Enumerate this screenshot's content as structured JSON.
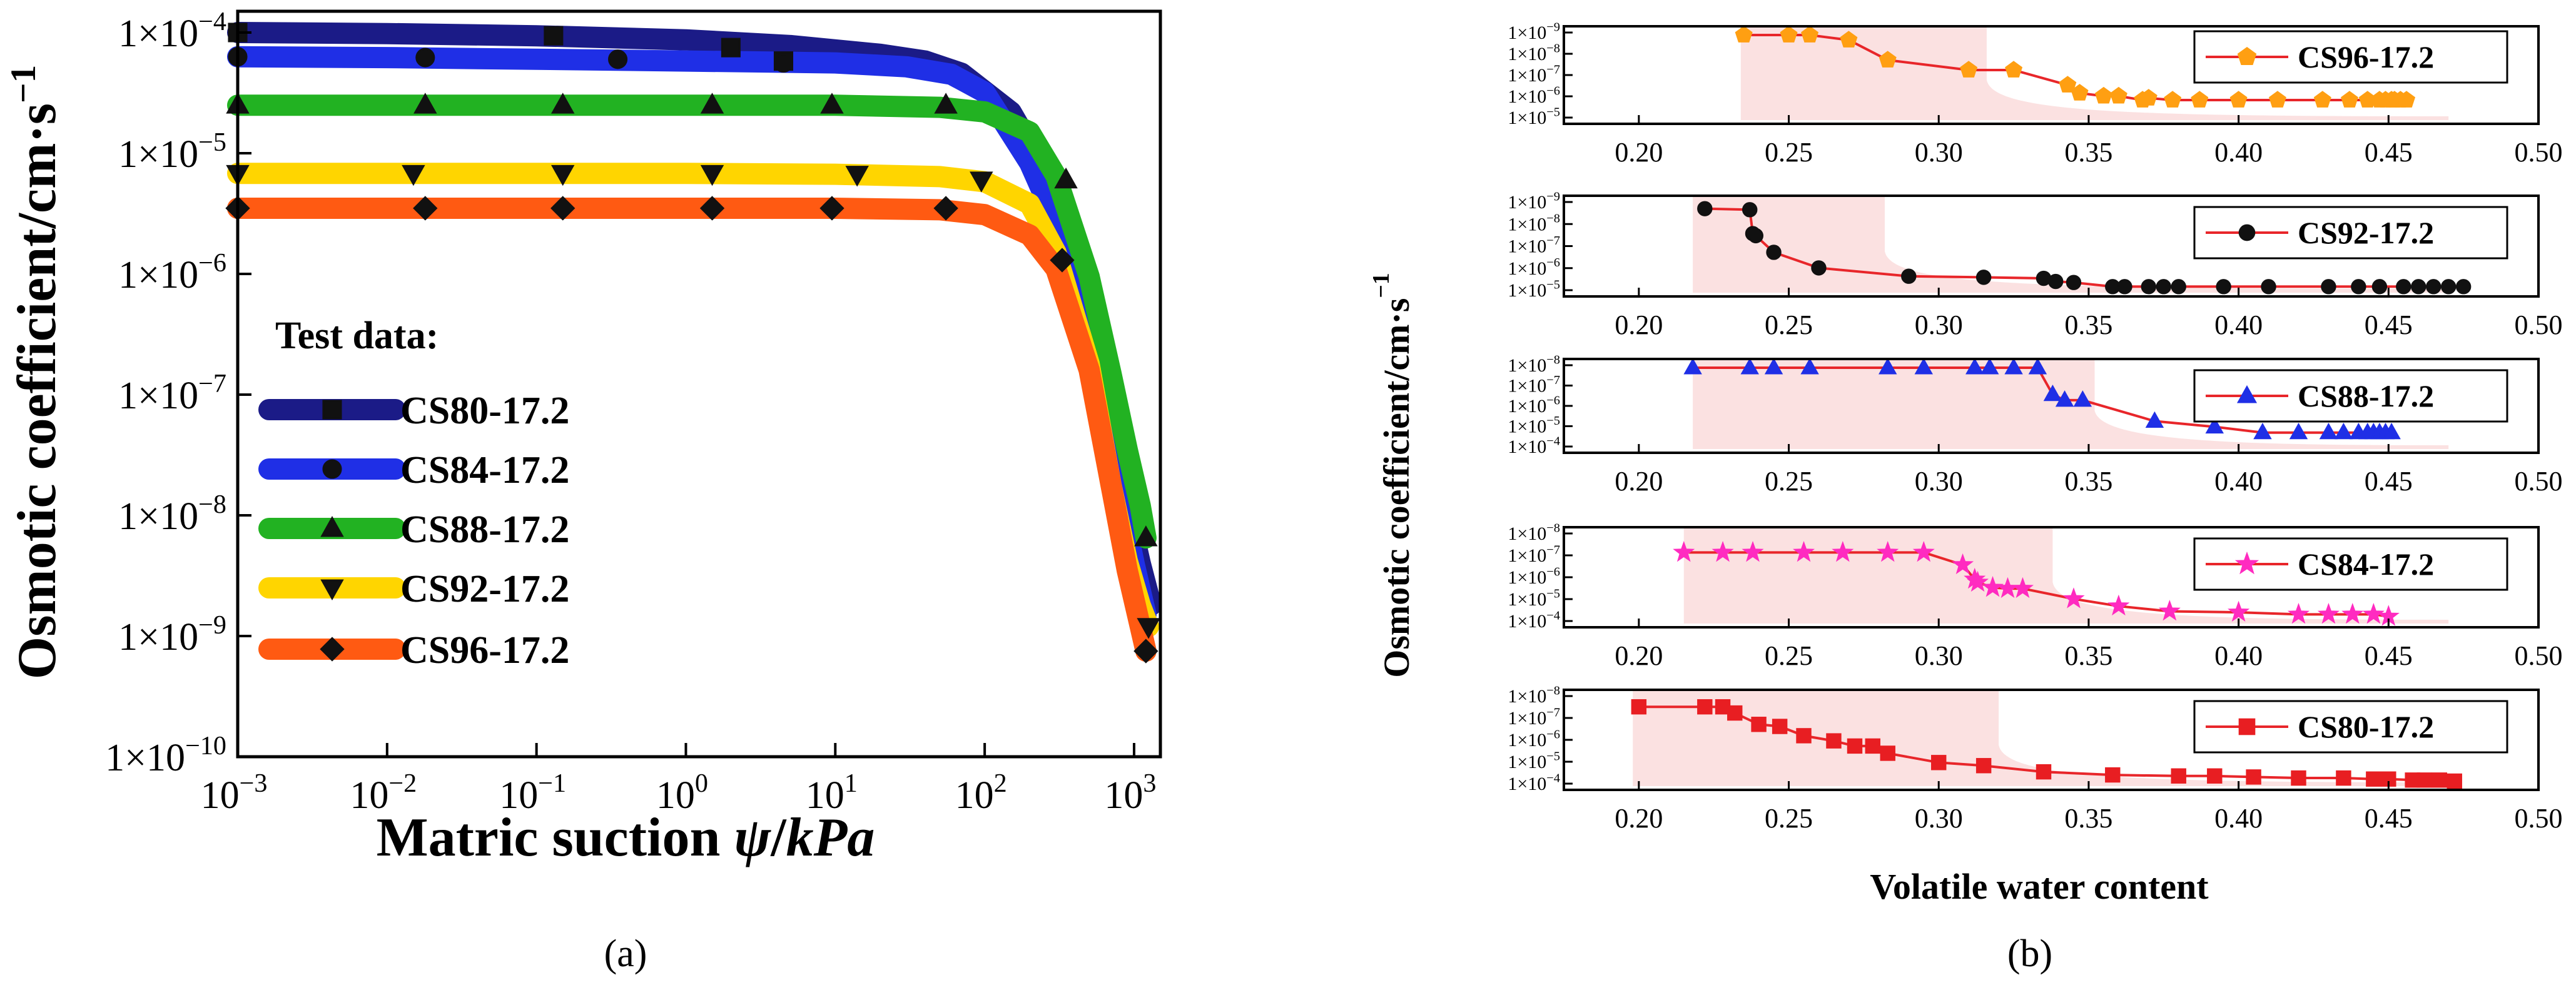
{
  "colors": {
    "cs80_a": "#1b1b87",
    "cs84_a": "#1f2fe6",
    "cs88_a": "#22b222",
    "cs92_a": "#ffd500",
    "cs96_a": "#ff5a12",
    "line_b": "#e8262a",
    "band_b": "#fbe1e1",
    "orange_marker": "#ff9f12",
    "black_marker": "#111111",
    "blue_marker": "#1f2fe6",
    "pink_marker": "#ff2bc0",
    "red_marker": "#e81e22"
  },
  "captions": {
    "a": "(a)",
    "b": "(b)"
  },
  "chart_data": [
    {
      "type": "line",
      "panel": "a",
      "xlabel_prefix": "Matric suction ",
      "xlabel_var": "ψ",
      "xlabel_sep": "/",
      "xlabel_unit": "kPa",
      "ylabel": "Osmotic coefficient/cm·s⁻¹",
      "xscale": "log",
      "yscale": "log",
      "xlim": [
        0.001,
        1500
      ],
      "ylim": [
        1e-10,
        0.00015
      ],
      "xticks": [
        {
          "v": 0.001,
          "base": "10",
          "exp": "−3"
        },
        {
          "v": 0.01,
          "base": "10",
          "exp": "−2"
        },
        {
          "v": 0.1,
          "base": "10",
          "exp": "−1"
        },
        {
          "v": 1,
          "base": "10",
          "exp": "0"
        },
        {
          "v": 10,
          "base": "10",
          "exp": "1"
        },
        {
          "v": 100,
          "base": "10",
          "exp": "2"
        },
        {
          "v": 1000,
          "base": "10",
          "exp": "3"
        }
      ],
      "yticks": [
        {
          "v": 0.0001,
          "base": "1×10",
          "exp": "−4"
        },
        {
          "v": 1e-05,
          "base": "1×10",
          "exp": "−5"
        },
        {
          "v": 1e-06,
          "base": "1×10",
          "exp": "−6"
        },
        {
          "v": 1e-07,
          "base": "1×10",
          "exp": "−7"
        },
        {
          "v": 1e-08,
          "base": "1×10",
          "exp": "−8"
        },
        {
          "v": 1e-09,
          "base": "1×10",
          "exp": "−9"
        },
        {
          "v": 1e-10,
          "base": "1×10",
          "exp": "−10"
        }
      ],
      "legend_title": "Test data:",
      "legend_position": "bottom-left",
      "series": [
        {
          "name": "CS80-17.2",
          "marker": "square",
          "color_key": "cs80_a",
          "fit_x": [
            0.001,
            0.01,
            0.1,
            1,
            5,
            20,
            40,
            70,
            150,
            300,
            500,
            700,
            900,
            1100,
            1300
          ],
          "fit_y": [
            0.0001,
            9.8e-05,
            9.4e-05,
            8.7e-05,
            7.8e-05,
            6.6e-05,
            5.8e-05,
            4.6e-05,
            2.2e-05,
            5e-06,
            5e-07,
            6e-08,
            1.2e-08,
            4e-09,
            1.8e-09
          ],
          "x": [
            0.001,
            0.13,
            2,
            4.5
          ],
          "y": [
            0.0001,
            9.4e-05,
            7.5e-05,
            5.8e-05
          ]
        },
        {
          "name": "CS84-17.2",
          "marker": "circle",
          "color_key": "cs84_a",
          "fit_x": [
            0.001,
            0.01,
            0.1,
            1,
            10,
            30,
            60,
            100,
            200,
            400,
            600,
            800,
            1000,
            1200
          ],
          "fit_y": [
            6.3e-05,
            6.2e-05,
            6e-05,
            5.8e-05,
            5.6e-05,
            5.2e-05,
            4.5e-05,
            3.2e-05,
            8.3e-06,
            1.2e-06,
            1.2e-07,
            1.5e-08,
            4e-09,
            1.5e-09
          ],
          "x": [
            0.001,
            0.018,
            0.35,
            4.5
          ],
          "y": [
            6.3e-05,
            6.2e-05,
            6e-05,
            5.6e-05
          ]
        },
        {
          "name": "CS88-17.2",
          "marker": "triangle-up",
          "color_key": "cs88_a",
          "fit_x": [
            0.001,
            0.01,
            0.1,
            1,
            10,
            50,
            100,
            200,
            300,
            500,
            700,
            900,
            1100,
            1200
          ],
          "fit_y": [
            2.5e-05,
            2.5e-05,
            2.5e-05,
            2.5e-05,
            2.5e-05,
            2.4e-05,
            2.2e-05,
            1.5e-05,
            6.5e-06,
            9.5e-07,
            1.5e-07,
            3.5e-08,
            1.2e-08,
            6.5e-09
          ],
          "x": [
            0.001,
            0.018,
            0.15,
            1.5,
            9.5,
            55,
            350,
            1200
          ],
          "y": [
            2.5e-05,
            2.5e-05,
            2.5e-05,
            2.5e-05,
            2.5e-05,
            2.5e-05,
            6e-06,
            6.5e-09
          ]
        },
        {
          "name": "CS92-17.2",
          "marker": "triangle-down",
          "color_key": "cs92_a",
          "fit_x": [
            0.001,
            0.01,
            0.1,
            1,
            10,
            50,
            100,
            200,
            300,
            500,
            700,
            900,
            1100,
            1250
          ],
          "fit_y": [
            6.8e-06,
            6.8e-06,
            6.8e-06,
            6.8e-06,
            6.7e-06,
            6.4e-06,
            5.8e-06,
            3.8e-06,
            1.5e-06,
            1.8e-07,
            1.8e-08,
            4.2e-09,
            1.8e-09,
            1.2e-09
          ],
          "x": [
            0.001,
            0.015,
            0.15,
            1.5,
            14,
            95,
            1250
          ],
          "y": [
            6.8e-06,
            6.8e-06,
            6.8e-06,
            6.8e-06,
            6.7e-06,
            6e-06,
            1.2e-09
          ]
        },
        {
          "name": "CS96-17.2",
          "marker": "diamond",
          "color_key": "cs96_a",
          "fit_x": [
            0.001,
            0.01,
            0.1,
            1,
            10,
            50,
            100,
            200,
            300,
            500,
            700,
            900,
            1100,
            1200
          ],
          "fit_y": [
            3.5e-06,
            3.5e-06,
            3.5e-06,
            3.5e-06,
            3.5e-06,
            3.4e-06,
            3.1e-06,
            2.1e-06,
            1.1e-06,
            1.6e-07,
            1.8e-08,
            3.5e-09,
            1.2e-09,
            7.5e-10
          ],
          "x": [
            0.001,
            0.018,
            0.15,
            1.5,
            9.5,
            55,
            330,
            1200
          ],
          "y": [
            3.5e-06,
            3.5e-06,
            3.5e-06,
            3.5e-06,
            3.5e-06,
            3.5e-06,
            1.3e-06,
            7.5e-10
          ]
        }
      ]
    },
    {
      "type": "line",
      "panel": "b",
      "xlabel": "Volatile water content",
      "ylabel": "Osmotic coefficient/cm·s⁻¹",
      "xlim": [
        0.175,
        0.5
      ],
      "xticks": [
        "0.20",
        "0.25",
        "0.30",
        "0.35",
        "0.40",
        "0.45",
        "0.50"
      ],
      "subplots": [
        {
          "name": "CS96-17.2",
          "marker": "pentagon",
          "marker_color_key": "orange_marker",
          "yticks": [
            {
              "base": "1×10",
              "exp": "−9"
            },
            {
              "base": "1×10",
              "exp": "−8"
            },
            {
              "base": "1×10",
              "exp": "−7"
            },
            {
              "base": "1×10",
              "exp": "−6"
            },
            {
              "base": "1×10",
              "exp": "−5"
            }
          ],
          "y_exp_range": [
            -9,
            -5
          ],
          "band_x": [
            0.234,
            0.316
          ],
          "x": [
            0.235,
            0.25,
            0.257,
            0.27,
            0.283,
            0.31,
            0.325,
            0.343,
            0.347,
            0.355,
            0.36,
            0.368,
            0.37,
            0.378,
            0.387,
            0.4,
            0.413,
            0.428,
            0.437,
            0.443,
            0.447,
            0.449,
            0.451,
            0.452,
            0.454,
            0.456
          ],
          "y_exp": [
            -9,
            -9,
            -9,
            -8.75,
            -7.75,
            -7.25,
            -7.25,
            -6.5,
            -6.1,
            -5.95,
            -5.95,
            -5.75,
            -5.85,
            -5.75,
            -5.75,
            -5.75,
            -5.75,
            -5.75,
            -5.75,
            -5.75,
            -5.75,
            -5.75,
            -5.75,
            -5.75,
            -5.75,
            -5.75
          ]
        },
        {
          "name": "CS92-17.2",
          "marker": "circle",
          "marker_color_key": "black_marker",
          "yticks": [
            {
              "base": "1×10",
              "exp": "−9"
            },
            {
              "base": "1×10",
              "exp": "−8"
            },
            {
              "base": "1×10",
              "exp": "−7"
            },
            {
              "base": "1×10",
              "exp": "−6"
            },
            {
              "base": "1×10",
              "exp": "−5"
            }
          ],
          "y_exp_range": [
            -9,
            -5
          ],
          "band_x": [
            0.218,
            0.282
          ],
          "x": [
            0.222,
            0.237,
            0.238,
            0.239,
            0.245,
            0.26,
            0.29,
            0.315,
            0.335,
            0.339,
            0.345,
            0.358,
            0.362,
            0.37,
            0.375,
            0.38,
            0.395,
            0.41,
            0.43,
            0.44,
            0.447,
            0.455,
            0.46,
            0.465,
            0.47,
            0.475
          ],
          "y_exp": [
            -8.8,
            -8.75,
            -7.6,
            -7.5,
            -6.7,
            -5.95,
            -5.55,
            -5.5,
            -5.45,
            -5.3,
            -5.25,
            -5.05,
            -5.05,
            -5.05,
            -5.05,
            -5.05,
            -5.05,
            -5.05,
            -5.05,
            -5.05,
            -5.05,
            -5.05,
            -5.05,
            -5.05,
            -5.05,
            -5.05
          ]
        },
        {
          "name": "CS88-17.2",
          "marker": "triangle-up",
          "marker_color_key": "blue_marker",
          "yticks": [
            {
              "base": "1×10",
              "exp": "−8"
            },
            {
              "base": "1×10",
              "exp": "−7"
            },
            {
              "base": "1×10",
              "exp": "−6"
            },
            {
              "base": "1×10",
              "exp": "−5"
            },
            {
              "base": "1×10",
              "exp": "−4"
            }
          ],
          "y_exp_range": [
            -8,
            -4
          ],
          "band_x": [
            0.218,
            0.352
          ],
          "x": [
            0.218,
            0.237,
            0.245,
            0.257,
            0.283,
            0.295,
            0.312,
            0.317,
            0.325,
            0.333,
            0.338,
            0.342,
            0.348,
            0.372,
            0.392,
            0.408,
            0.42,
            0.43,
            0.435,
            0.44,
            0.443,
            0.445,
            0.447,
            0.449,
            0.451
          ],
          "y_exp": [
            -8,
            -8,
            -8,
            -8,
            -8,
            -8,
            -8,
            -8,
            -8,
            -8,
            -6.6,
            -6.3,
            -6.3,
            -5.2,
            -4.9,
            -4.6,
            -4.6,
            -4.6,
            -4.6,
            -4.6,
            -4.6,
            -4.6,
            -4.6,
            -4.6,
            -4.6
          ]
        },
        {
          "name": "CS84-17.2",
          "marker": "star",
          "marker_color_key": "pink_marker",
          "yticks": [
            {
              "base": "1×10",
              "exp": "−8"
            },
            {
              "base": "1×10",
              "exp": "−7"
            },
            {
              "base": "1×10",
              "exp": "−6"
            },
            {
              "base": "1×10",
              "exp": "−5"
            },
            {
              "base": "1×10",
              "exp": "−4"
            }
          ],
          "y_exp_range": [
            -8,
            -4
          ],
          "band_x": [
            0.215,
            0.338
          ],
          "x": [
            0.215,
            0.228,
            0.238,
            0.255,
            0.268,
            0.283,
            0.295,
            0.308,
            0.312,
            0.313,
            0.318,
            0.323,
            0.328,
            0.345,
            0.36,
            0.377,
            0.4,
            0.42,
            0.43,
            0.438,
            0.445,
            0.45
          ],
          "y_exp": [
            -7.2,
            -7.2,
            -7.2,
            -7.2,
            -7.2,
            -7.2,
            -7.2,
            -6.6,
            -5.9,
            -5.75,
            -5.5,
            -5.45,
            -5.45,
            -4.95,
            -4.6,
            -4.35,
            -4.3,
            -4.2,
            -4.2,
            -4.2,
            -4.2,
            -4.1
          ]
        },
        {
          "name": "CS80-17.2",
          "marker": "square",
          "marker_color_key": "red_marker",
          "yticks": [
            {
              "base": "1×10",
              "exp": "−8"
            },
            {
              "base": "1×10",
              "exp": "−7"
            },
            {
              "base": "1×10",
              "exp": "−6"
            },
            {
              "base": "1×10",
              "exp": "−5"
            },
            {
              "base": "1×10",
              "exp": "−4"
            }
          ],
          "y_exp_range": [
            -8,
            -4
          ],
          "band_x": [
            0.198,
            0.32
          ],
          "x": [
            0.2,
            0.222,
            0.228,
            0.232,
            0.24,
            0.247,
            0.255,
            0.265,
            0.272,
            0.278,
            0.283,
            0.3,
            0.315,
            0.335,
            0.358,
            0.38,
            0.392,
            0.405,
            0.42,
            0.435,
            0.445,
            0.45,
            0.458,
            0.462,
            0.467,
            0.472
          ],
          "y_exp": [
            -7.6,
            -7.6,
            -7.6,
            -7.3,
            -6.75,
            -6.65,
            -6.2,
            -5.95,
            -5.7,
            -5.7,
            -5.35,
            -4.9,
            -4.75,
            -4.45,
            -4.3,
            -4.25,
            -4.25,
            -4.2,
            -4.15,
            -4.15,
            -4.1,
            -4.1,
            -4.05,
            -4.05,
            -4.05,
            -4.0
          ]
        }
      ]
    }
  ]
}
